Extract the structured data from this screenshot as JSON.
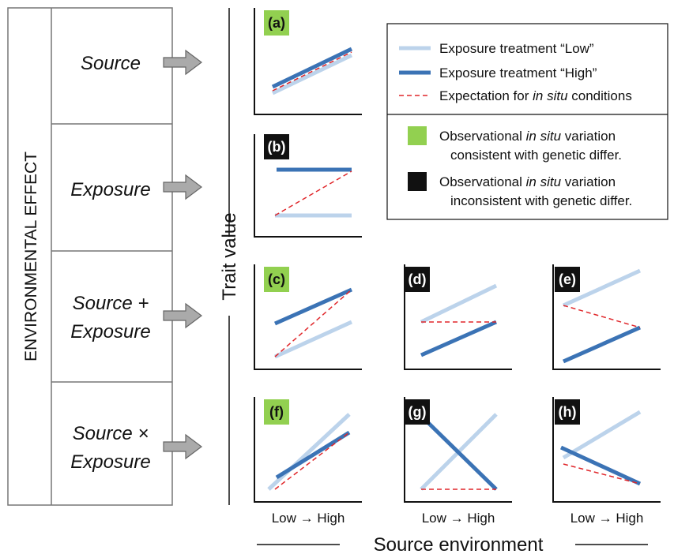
{
  "effect_label": "ENVIRONMENTAL EFFECT",
  "rows": [
    [
      "Source"
    ],
    [
      "Exposure"
    ],
    [
      "Source +",
      "Exposure"
    ],
    [
      "Source ×",
      "Exposure"
    ]
  ],
  "y_label": "Trait value",
  "panels": [
    "(a)",
    "(b)",
    "(c)",
    "(d)",
    "(e)",
    "(f)",
    "(g)",
    "(h)"
  ],
  "legend": [
    [
      "Exposure treatment “Low”"
    ],
    [
      "Exposure treatment “High”"
    ],
    [
      "Expectation for ",
      "in situ",
      " conditions"
    ],
    [
      "Observational ",
      "in situ",
      " variation",
      "consistent with genetic differ."
    ],
    [
      "Observational ",
      "in situ",
      " variation",
      "inconsistent with genetic differ."
    ]
  ],
  "x_tick": "Low → High",
  "x_label": "Source environment"
}
